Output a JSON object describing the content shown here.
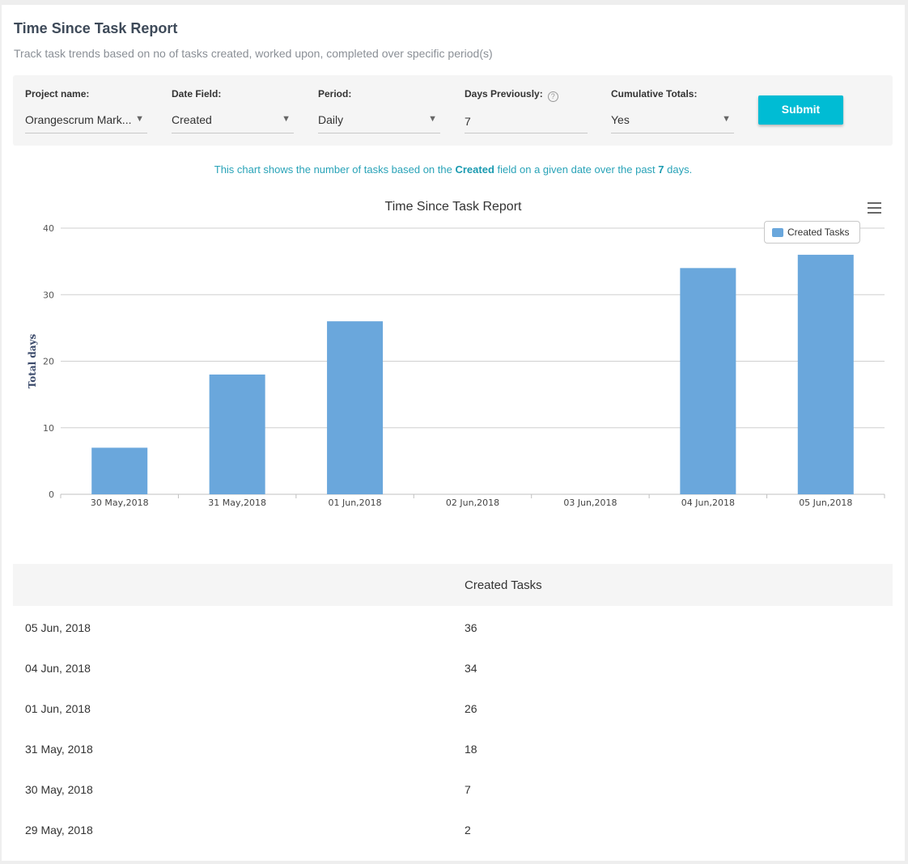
{
  "header": {
    "title": "Time Since Task Report",
    "subtitle": "Track task trends based on no of tasks created, worked upon, completed over specific period(s)"
  },
  "filters": {
    "project_label": "Project name:",
    "project_value": "Orangescrum Mark...",
    "date_field_label": "Date Field:",
    "date_field_value": "Created",
    "period_label": "Period:",
    "period_value": "Daily",
    "days_label": "Days Previously:",
    "days_help": "?",
    "days_value": "7",
    "cumulative_label": "Cumulative Totals:",
    "cumulative_value": "Yes",
    "submit_label": "Submit"
  },
  "info": {
    "prefix": "This chart shows the number of tasks based on the",
    "field": "Created",
    "middle": "field on a given date over the past",
    "days": "7",
    "suffix": "days."
  },
  "chart_data": {
    "type": "bar",
    "title": "Time Since Task Report",
    "xlabel": "",
    "ylabel": "Total days",
    "categories": [
      "30 May,2018",
      "31 May,2018",
      "01 Jun,2018",
      "02 Jun,2018",
      "03 Jun,2018",
      "04 Jun,2018",
      "05 Jun,2018"
    ],
    "series": [
      {
        "name": "Created Tasks",
        "values": [
          7,
          18,
          26,
          0,
          0,
          34,
          36
        ]
      }
    ],
    "ylim": [
      0,
      40
    ],
    "yticks": [
      0,
      10,
      20,
      30,
      40
    ],
    "grid": true,
    "legend": "top-right",
    "color": "#6aa7dc"
  },
  "table": {
    "header": "Created Tasks",
    "rows": [
      {
        "date": "05 Jun, 2018",
        "value": "36"
      },
      {
        "date": "04 Jun, 2018",
        "value": "34"
      },
      {
        "date": "01 Jun, 2018",
        "value": "26"
      },
      {
        "date": "31 May, 2018",
        "value": "18"
      },
      {
        "date": "30 May, 2018",
        "value": "7"
      },
      {
        "date": "29 May, 2018",
        "value": "2"
      }
    ]
  },
  "colors": {
    "accent": "#00bcd4",
    "bar": "#6aa7dc",
    "info_text": "#29a3b8"
  }
}
